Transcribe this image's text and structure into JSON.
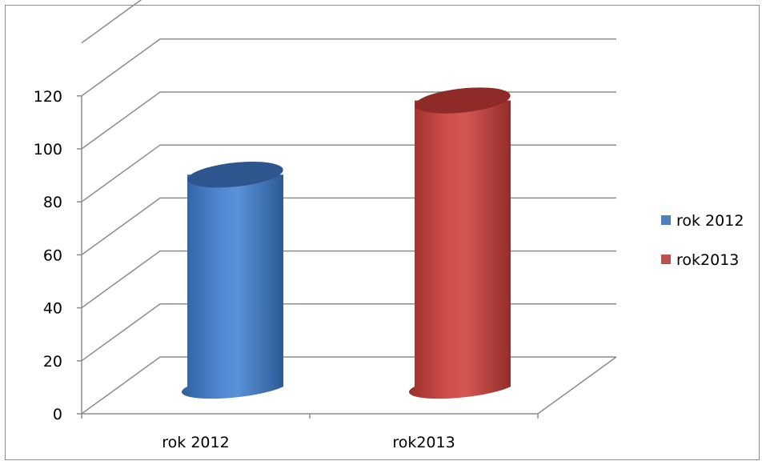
{
  "chart_data": {
    "type": "bar",
    "style": "3d-cylinder",
    "categories": [
      "rok 2012",
      "rok2013"
    ],
    "series": [
      {
        "name": "rok 2012",
        "color": "#4F81BD",
        "values": [
          80,
          null
        ]
      },
      {
        "name": "rok2013",
        "color": "#C0504D",
        "values": [
          null,
          108
        ]
      }
    ],
    "ylim": [
      0,
      120
    ],
    "yticks": [
      "0",
      "20",
      "40",
      "60",
      "80",
      "100",
      "120"
    ],
    "grid": true,
    "legend_position": "right"
  }
}
